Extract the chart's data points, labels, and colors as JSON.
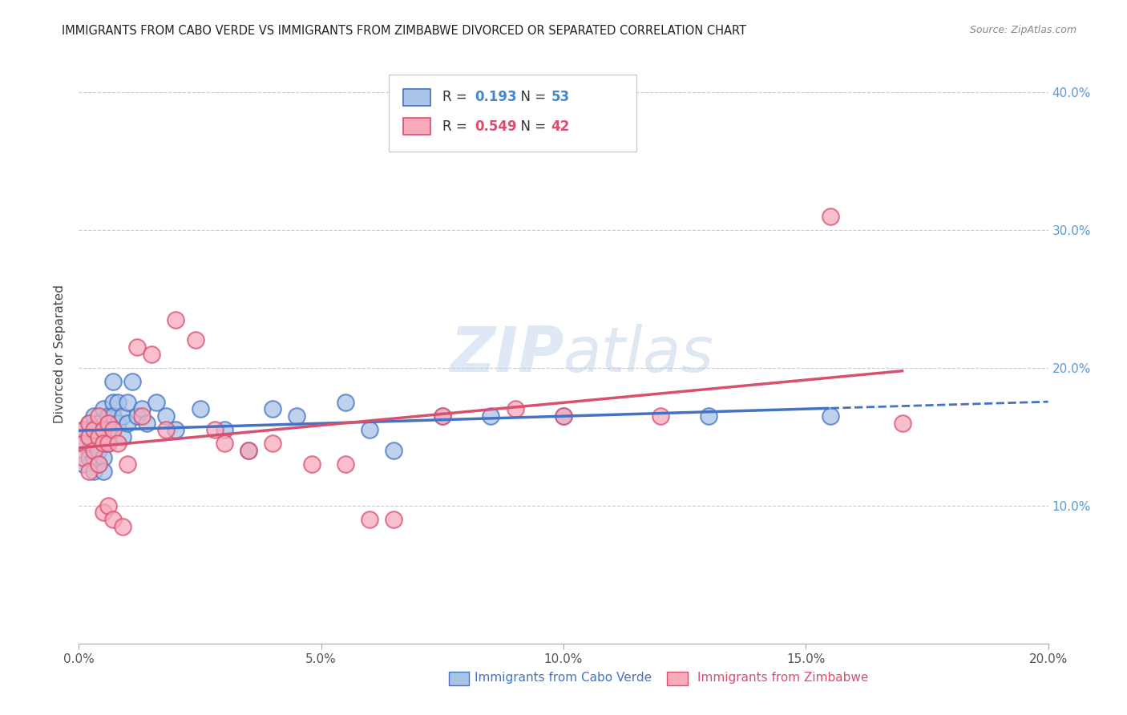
{
  "title": "IMMIGRANTS FROM CABO VERDE VS IMMIGRANTS FROM ZIMBABWE DIVORCED OR SEPARATED CORRELATION CHART",
  "source": "Source: ZipAtlas.com",
  "ylabel": "Divorced or Separated",
  "legend_label1": "Immigrants from Cabo Verde",
  "legend_label2": "Immigrants from Zimbabwe",
  "r1": 0.193,
  "n1": 53,
  "r2": 0.549,
  "n2": 42,
  "color_blue": "#aac4e8",
  "color_pink": "#f8aabb",
  "line_blue": "#4472c4",
  "line_pink": "#d94f6e",
  "watermark": "ZIPatlas",
  "xmin": 0.0,
  "xmax": 0.2,
  "ymin": 0.0,
  "ymax": 0.42,
  "cabo_verde_x": [
    0.001,
    0.001,
    0.001,
    0.002,
    0.002,
    0.002,
    0.002,
    0.003,
    0.003,
    0.003,
    0.003,
    0.003,
    0.004,
    0.004,
    0.004,
    0.004,
    0.005,
    0.005,
    0.005,
    0.005,
    0.005,
    0.006,
    0.006,
    0.006,
    0.007,
    0.007,
    0.007,
    0.008,
    0.008,
    0.009,
    0.009,
    0.01,
    0.01,
    0.011,
    0.012,
    0.013,
    0.014,
    0.016,
    0.018,
    0.02,
    0.025,
    0.03,
    0.035,
    0.04,
    0.045,
    0.055,
    0.06,
    0.065,
    0.075,
    0.085,
    0.1,
    0.13,
    0.155
  ],
  "cabo_verde_y": [
    0.155,
    0.145,
    0.13,
    0.16,
    0.15,
    0.14,
    0.135,
    0.165,
    0.155,
    0.145,
    0.135,
    0.125,
    0.16,
    0.15,
    0.14,
    0.13,
    0.17,
    0.155,
    0.145,
    0.135,
    0.125,
    0.165,
    0.155,
    0.145,
    0.19,
    0.175,
    0.165,
    0.175,
    0.16,
    0.165,
    0.15,
    0.175,
    0.16,
    0.19,
    0.165,
    0.17,
    0.16,
    0.175,
    0.165,
    0.155,
    0.17,
    0.155,
    0.14,
    0.17,
    0.165,
    0.175,
    0.155,
    0.14,
    0.165,
    0.165,
    0.165,
    0.165,
    0.165
  ],
  "zimbabwe_x": [
    0.001,
    0.001,
    0.001,
    0.002,
    0.002,
    0.002,
    0.003,
    0.003,
    0.004,
    0.004,
    0.004,
    0.005,
    0.005,
    0.005,
    0.006,
    0.006,
    0.006,
    0.007,
    0.007,
    0.008,
    0.009,
    0.01,
    0.012,
    0.013,
    0.015,
    0.018,
    0.02,
    0.024,
    0.028,
    0.03,
    0.035,
    0.04,
    0.048,
    0.055,
    0.06,
    0.065,
    0.075,
    0.09,
    0.1,
    0.12,
    0.155,
    0.17
  ],
  "zimbabwe_y": [
    0.155,
    0.145,
    0.135,
    0.16,
    0.15,
    0.125,
    0.155,
    0.14,
    0.165,
    0.15,
    0.13,
    0.155,
    0.145,
    0.095,
    0.16,
    0.145,
    0.1,
    0.155,
    0.09,
    0.145,
    0.085,
    0.13,
    0.215,
    0.165,
    0.21,
    0.155,
    0.235,
    0.22,
    0.155,
    0.145,
    0.14,
    0.145,
    0.13,
    0.13,
    0.09,
    0.09,
    0.165,
    0.17,
    0.165,
    0.165,
    0.31,
    0.16
  ],
  "x_ticks": [
    0.0,
    0.05,
    0.1,
    0.15,
    0.2
  ],
  "x_tick_labels": [
    "0.0%",
    "5.0%",
    "10.0%",
    "15.0%",
    "20.0%"
  ],
  "y_ticks": [
    0.0,
    0.1,
    0.2,
    0.3,
    0.4
  ],
  "y_tick_labels": [
    "",
    "10.0%",
    "20.0%",
    "30.0%",
    "40.0%"
  ]
}
